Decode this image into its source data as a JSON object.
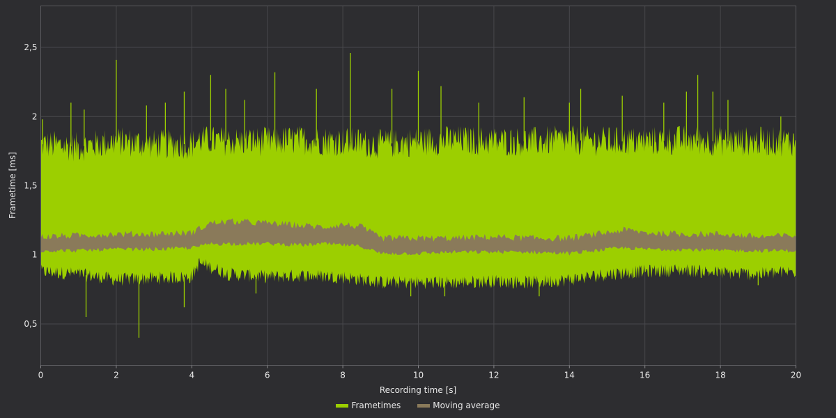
{
  "chart_data": {
    "type": "line",
    "title": "",
    "xlabel": "Recording time [s]",
    "ylabel": "Frametime [ms]",
    "xlim": [
      0,
      20
    ],
    "ylim": [
      0.2,
      2.8
    ],
    "x_ticks": [
      0,
      2,
      4,
      6,
      8,
      10,
      12,
      14,
      16,
      18,
      20
    ],
    "x_tick_labels": [
      "0",
      "2",
      "4",
      "6",
      "8",
      "10",
      "12",
      "14",
      "16",
      "18",
      "20"
    ],
    "y_ticks": [
      0.5,
      1,
      1.5,
      2,
      2.5
    ],
    "y_tick_labels": [
      "0,5",
      "1",
      "1,5",
      "2",
      "2,5"
    ],
    "grid": true,
    "legend_position": "bottom-center",
    "series": [
      {
        "name": "Frametimes",
        "color": "#9ccf00",
        "band": {
          "x": [
            0,
            1,
            2,
            3,
            4,
            4.2,
            5,
            6,
            7,
            8,
            9,
            10,
            11,
            12,
            13,
            14,
            15,
            16,
            17,
            18,
            19,
            20
          ],
          "upper": [
            1.8,
            1.78,
            1.82,
            1.8,
            1.8,
            1.83,
            1.82,
            1.82,
            1.83,
            1.82,
            1.8,
            1.82,
            1.83,
            1.82,
            1.82,
            1.83,
            1.82,
            1.82,
            1.83,
            1.82,
            1.82,
            1.82
          ],
          "lower": [
            0.88,
            0.86,
            0.82,
            0.83,
            0.84,
            0.94,
            0.86,
            0.84,
            0.85,
            0.84,
            0.8,
            0.8,
            0.8,
            0.81,
            0.8,
            0.82,
            0.86,
            0.88,
            0.89,
            0.87,
            0.86,
            0.88
          ]
        },
        "spikes": [
          {
            "x": 0.05,
            "y": 1.98
          },
          {
            "x": 0.8,
            "y": 2.1
          },
          {
            "x": 1.15,
            "y": 2.05
          },
          {
            "x": 1.2,
            "y": 0.55
          },
          {
            "x": 2.0,
            "y": 2.41
          },
          {
            "x": 2.6,
            "y": 0.4
          },
          {
            "x": 2.8,
            "y": 2.08
          },
          {
            "x": 3.3,
            "y": 2.1
          },
          {
            "x": 3.8,
            "y": 2.18
          },
          {
            "x": 3.8,
            "y": 0.62
          },
          {
            "x": 4.5,
            "y": 2.3
          },
          {
            "x": 4.9,
            "y": 2.2
          },
          {
            "x": 5.4,
            "y": 2.12
          },
          {
            "x": 6.2,
            "y": 2.32
          },
          {
            "x": 7.3,
            "y": 2.2
          },
          {
            "x": 8.2,
            "y": 2.46
          },
          {
            "x": 9.3,
            "y": 2.2
          },
          {
            "x": 10.0,
            "y": 2.33
          },
          {
            "x": 10.6,
            "y": 2.22
          },
          {
            "x": 11.6,
            "y": 2.1
          },
          {
            "x": 12.8,
            "y": 2.14
          },
          {
            "x": 14.0,
            "y": 2.1
          },
          {
            "x": 14.3,
            "y": 2.2
          },
          {
            "x": 15.4,
            "y": 2.15
          },
          {
            "x": 16.5,
            "y": 2.1
          },
          {
            "x": 17.1,
            "y": 2.18
          },
          {
            "x": 17.4,
            "y": 2.3
          },
          {
            "x": 17.8,
            "y": 2.18
          },
          {
            "x": 18.2,
            "y": 2.12
          },
          {
            "x": 19.6,
            "y": 2.0
          },
          {
            "x": 10.7,
            "y": 0.7
          },
          {
            "x": 9.8,
            "y": 0.7
          },
          {
            "x": 13.2,
            "y": 0.7
          },
          {
            "x": 19.0,
            "y": 0.78
          },
          {
            "x": 5.7,
            "y": 0.72
          }
        ]
      },
      {
        "name": "Moving average",
        "color": "#8a7a5a",
        "band": {
          "x": [
            0,
            1,
            2,
            3,
            4,
            4.5,
            5,
            6,
            7,
            7.5,
            8,
            8.5,
            9,
            10,
            11,
            12,
            13,
            14,
            15,
            15.5,
            16,
            17,
            18,
            19,
            20
          ],
          "upper": [
            1.13,
            1.14,
            1.15,
            1.15,
            1.16,
            1.23,
            1.24,
            1.23,
            1.21,
            1.2,
            1.22,
            1.2,
            1.12,
            1.12,
            1.12,
            1.13,
            1.12,
            1.12,
            1.16,
            1.18,
            1.16,
            1.15,
            1.15,
            1.13,
            1.14
          ],
          "lower": [
            1.03,
            1.03,
            1.04,
            1.04,
            1.05,
            1.08,
            1.08,
            1.08,
            1.07,
            1.08,
            1.07,
            1.06,
            1.01,
            1.01,
            1.02,
            1.02,
            1.02,
            1.01,
            1.04,
            1.05,
            1.04,
            1.04,
            1.03,
            1.03,
            1.03
          ]
        }
      }
    ]
  }
}
